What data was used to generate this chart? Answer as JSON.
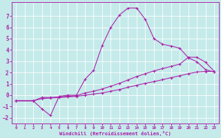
{
  "xlabel": "Windchill (Refroidissement éolien,°C)",
  "background_color": "#c5eaea",
  "grid_color": "#ffffff",
  "line_color": "#aa22aa",
  "xlim": [
    -0.5,
    23.5
  ],
  "ylim": [
    -2.5,
    8.2
  ],
  "xticks": [
    0,
    1,
    2,
    3,
    4,
    5,
    6,
    7,
    8,
    9,
    10,
    11,
    12,
    13,
    14,
    15,
    16,
    17,
    18,
    19,
    20,
    21,
    22,
    23
  ],
  "yticks": [
    -2,
    -1,
    0,
    1,
    2,
    3,
    4,
    5,
    6,
    7
  ],
  "series_a_x": [
    0,
    2,
    3,
    4,
    5,
    6,
    7,
    8,
    9,
    10,
    11,
    12,
    13,
    14,
    15,
    16,
    17,
    18,
    19,
    20,
    21,
    22,
    23
  ],
  "series_a_y": [
    -0.5,
    -0.5,
    -1.2,
    -1.8,
    -0.1,
    0.0,
    0.0,
    1.4,
    2.2,
    4.4,
    6.0,
    7.1,
    7.7,
    7.7,
    6.7,
    5.0,
    4.5,
    4.35,
    4.15,
    3.3,
    2.95,
    2.25,
    2.05
  ],
  "series_b_x": [
    0,
    2,
    3,
    4,
    5,
    6,
    7,
    8,
    9,
    10,
    11,
    12,
    13,
    14,
    15,
    16,
    17,
    18,
    19,
    20,
    21,
    22,
    23
  ],
  "series_b_y": [
    -0.5,
    -0.5,
    -0.2,
    -0.2,
    -0.15,
    -0.1,
    -0.05,
    0.2,
    0.35,
    0.55,
    0.8,
    1.05,
    1.35,
    1.65,
    1.9,
    2.15,
    2.35,
    2.55,
    2.75,
    3.35,
    3.35,
    2.9,
    2.1
  ],
  "series_c_x": [
    0,
    2,
    3,
    4,
    5,
    6,
    7,
    8,
    9,
    10,
    11,
    12,
    13,
    14,
    15,
    16,
    17,
    18,
    19,
    20,
    21,
    22,
    23
  ],
  "series_c_y": [
    -0.5,
    -0.5,
    -0.3,
    -0.25,
    -0.2,
    -0.15,
    -0.1,
    0.0,
    0.1,
    0.2,
    0.35,
    0.5,
    0.7,
    0.88,
    1.05,
    1.2,
    1.37,
    1.55,
    1.72,
    1.9,
    2.05,
    2.1,
    2.1
  ],
  "marker": "+",
  "markersize": 3,
  "linewidth": 0.8
}
